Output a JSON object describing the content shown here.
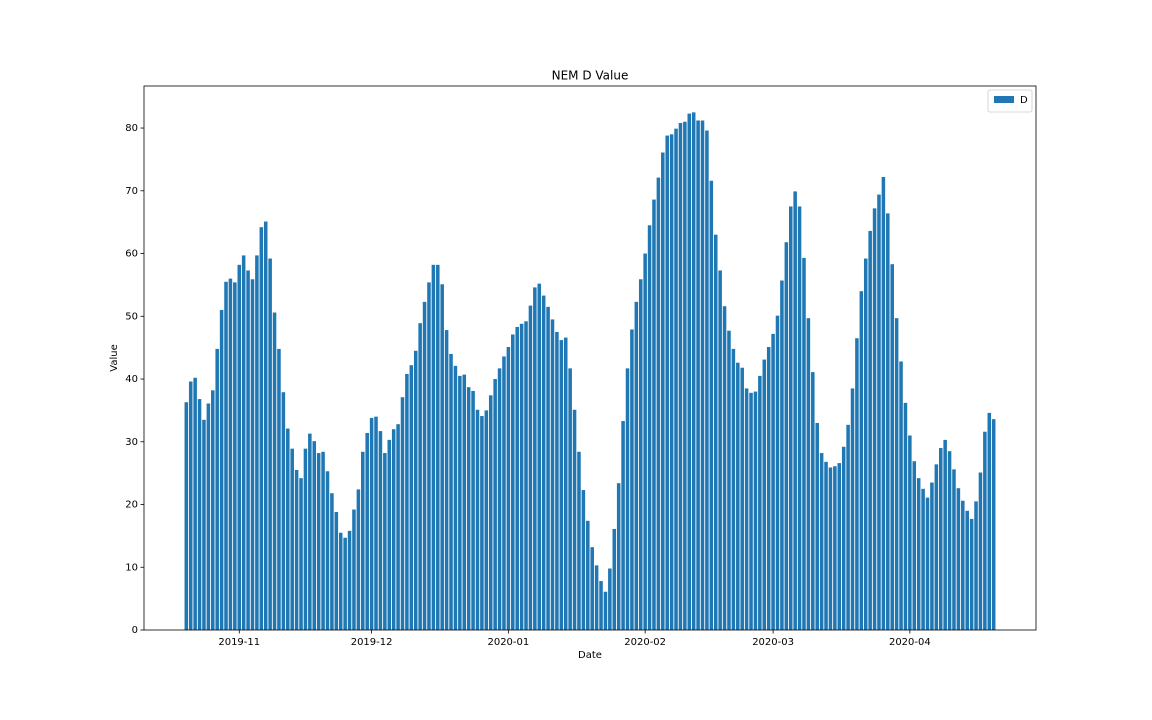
{
  "chart_data": {
    "type": "bar",
    "title": "NEM D Value",
    "xlabel": "Date",
    "ylabel": "Value",
    "categories": [
      null,
      null,
      null,
      null,
      null,
      null,
      null,
      null,
      null,
      null,
      null,
      null,
      "2019-11",
      null,
      null,
      null,
      null,
      null,
      null,
      null,
      null,
      null,
      null,
      null,
      null,
      null,
      null,
      null,
      null,
      null,
      null,
      null,
      null,
      null,
      null,
      null,
      null,
      null,
      null,
      null,
      null,
      null,
      "2019-12",
      null,
      null,
      null,
      null,
      null,
      null,
      null,
      null,
      null,
      null,
      null,
      null,
      null,
      null,
      null,
      null,
      null,
      null,
      null,
      null,
      null,
      null,
      null,
      null,
      null,
      null,
      null,
      null,
      null,
      null,
      "2020-01",
      null,
      null,
      null,
      null,
      null,
      null,
      null,
      null,
      null,
      null,
      null,
      null,
      null,
      null,
      null,
      null,
      null,
      null,
      null,
      null,
      null,
      null,
      null,
      null,
      null,
      null,
      null,
      null,
      null,
      null,
      "2020-02",
      null,
      null,
      null,
      null,
      null,
      null,
      null,
      null,
      null,
      null,
      null,
      null,
      null,
      null,
      null,
      null,
      null,
      null,
      null,
      null,
      null,
      null,
      null,
      null,
      null,
      null,
      null,
      null,
      "2020-03",
      null,
      null,
      null,
      null,
      null,
      null,
      null,
      null,
      null,
      null,
      null,
      null,
      null,
      null,
      null,
      null,
      null,
      null,
      null,
      null,
      null,
      null,
      null,
      null,
      null,
      null,
      null,
      null,
      null,
      null,
      "2020-04",
      null,
      null,
      null,
      null,
      null,
      null,
      null,
      null,
      null,
      null,
      null,
      null,
      null,
      null,
      null,
      null,
      null,
      null,
      null
    ],
    "series": [
      {
        "name": "D",
        "color": "#1f77b4",
        "values": [
          36.3,
          39.6,
          40.2,
          36.8,
          33.5,
          36.1,
          38.2,
          44.8,
          51.0,
          55.5,
          56.0,
          55.4,
          58.2,
          59.7,
          57.3,
          55.9,
          59.7,
          64.2,
          65.1,
          59.2,
          50.6,
          44.8,
          37.9,
          32.1,
          28.9,
          25.5,
          24.2,
          28.9,
          31.3,
          30.1,
          28.2,
          28.4,
          25.3,
          21.8,
          18.8,
          15.5,
          14.7,
          15.8,
          19.2,
          22.4,
          28.4,
          31.4,
          33.8,
          34.0,
          31.7,
          28.2,
          30.3,
          32.0,
          32.8,
          37.1,
          40.8,
          42.2,
          44.5,
          48.9,
          52.3,
          55.4,
          58.2,
          58.2,
          55.1,
          47.8,
          44.0,
          42.1,
          40.5,
          40.7,
          38.7,
          38.1,
          35.1,
          34.1,
          35.0,
          37.4,
          40.0,
          41.7,
          43.6,
          45.1,
          47.1,
          48.3,
          48.8,
          49.2,
          51.7,
          54.6,
          55.2,
          53.3,
          51.5,
          49.5,
          47.5,
          46.2,
          46.6,
          41.7,
          35.1,
          28.4,
          22.3,
          17.4,
          13.2,
          10.3,
          7.8,
          6.1,
          9.8,
          16.1,
          23.4,
          33.3,
          41.7,
          47.9,
          52.3,
          55.9,
          60.0,
          64.5,
          68.6,
          72.1,
          76.1,
          78.8,
          79.0,
          79.9,
          80.8,
          81.0,
          82.3,
          82.5,
          81.2,
          81.2,
          79.6,
          71.6,
          63.0,
          57.3,
          51.6,
          47.7,
          44.8,
          42.6,
          41.8,
          38.5,
          37.8,
          38.0,
          40.5,
          43.1,
          45.1,
          47.2,
          50.1,
          55.7,
          61.8,
          67.5,
          69.9,
          67.5,
          59.3,
          49.7,
          41.1,
          33.0,
          28.2,
          26.8,
          25.9,
          26.1,
          26.6,
          29.2,
          32.7,
          38.5,
          46.5,
          54.0,
          59.2,
          63.6,
          67.2,
          69.4,
          72.2,
          66.4,
          58.3,
          49.7,
          42.8,
          36.2,
          31.0,
          26.9,
          24.2,
          22.5,
          21.1,
          23.5,
          26.4,
          29.0,
          30.3,
          28.5,
          25.6,
          22.6,
          20.6,
          19.0,
          17.7,
          20.5,
          25.1,
          31.6,
          34.6,
          33.6
        ]
      }
    ],
    "ylim": [
      0,
      86.7
    ],
    "yticks": [
      0,
      10,
      20,
      30,
      40,
      50,
      60,
      70,
      80
    ],
    "legend": "upper right"
  }
}
